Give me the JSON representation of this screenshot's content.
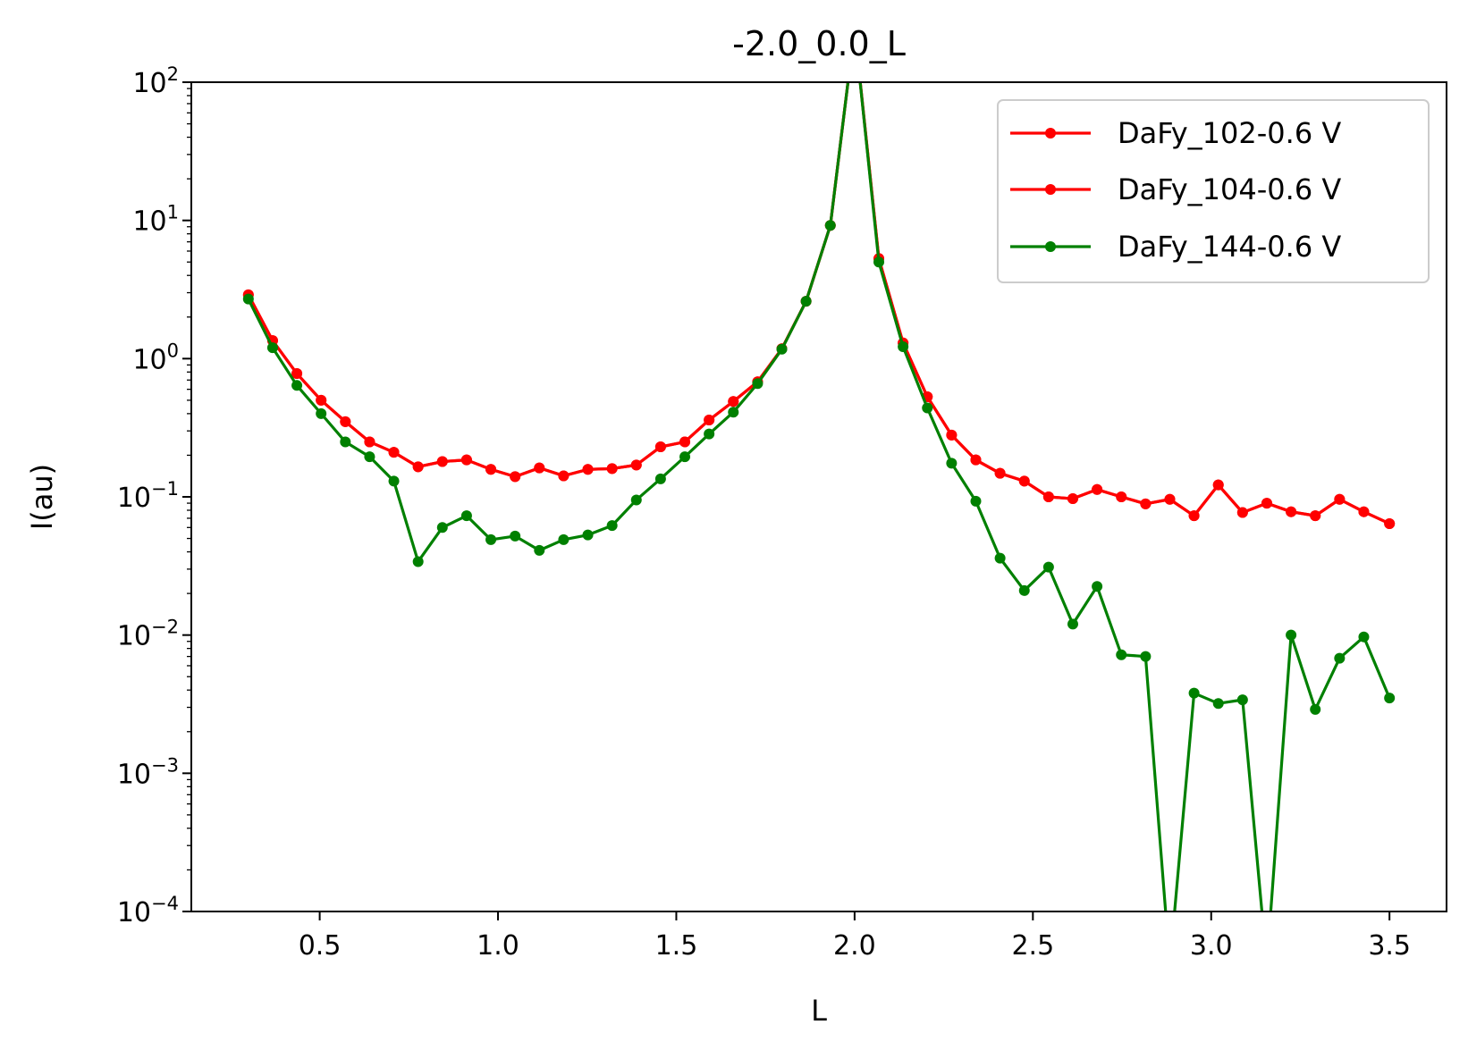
{
  "chart_data": {
    "type": "line",
    "title": "-2.0_0.0_L",
    "xlabel": "L",
    "ylabel": "I(au)",
    "xlim": [
      0.14,
      3.66
    ],
    "ylim": [
      0.0001,
      100
    ],
    "yscale": "log",
    "xticks": [
      {
        "value": 0.5,
        "label": "0.5"
      },
      {
        "value": 1.0,
        "label": "1.0"
      },
      {
        "value": 1.5,
        "label": "1.5"
      },
      {
        "value": 2.0,
        "label": "2.0"
      },
      {
        "value": 2.5,
        "label": "2.5"
      },
      {
        "value": 3.0,
        "label": "3.0"
      },
      {
        "value": 3.5,
        "label": "3.5"
      }
    ],
    "yticks": [
      {
        "exp": 2,
        "base": "10",
        "sup": "2"
      },
      {
        "exp": 1,
        "base": "10",
        "sup": "1"
      },
      {
        "exp": 0,
        "base": "10",
        "sup": "0"
      },
      {
        "exp": -1,
        "base": "10",
        "sup": "−1"
      },
      {
        "exp": -2,
        "base": "10",
        "sup": "−2"
      },
      {
        "exp": -3,
        "base": "10",
        "sup": "−3"
      },
      {
        "exp": -4,
        "base": "10",
        "sup": "−4"
      }
    ],
    "grid": false,
    "legend_position": "top-right",
    "series": [
      {
        "name": "DaFy_102-0.6 V",
        "color": "#ff0000",
        "x": [
          0.3,
          0.368,
          0.436,
          0.504,
          0.572,
          0.64,
          0.708,
          0.776,
          0.844,
          0.912,
          0.98,
          1.048,
          1.116,
          1.184,
          1.252,
          1.32,
          1.388,
          1.456,
          1.524,
          1.592,
          1.66,
          1.728,
          1.796,
          1.864,
          1.932,
          2.0,
          2.068,
          2.136,
          2.204,
          2.272,
          2.34,
          2.408,
          2.476,
          2.544,
          2.612,
          2.68,
          2.748,
          2.816,
          2.884,
          2.952,
          3.02,
          3.088,
          3.156,
          3.224,
          3.292,
          3.36,
          3.428,
          3.5
        ],
        "y": [
          2.9,
          1.35,
          0.78,
          0.5,
          0.35,
          0.25,
          0.21,
          0.165,
          0.18,
          0.185,
          0.158,
          0.14,
          0.162,
          0.142,
          0.158,
          0.16,
          0.17,
          0.23,
          0.25,
          0.36,
          0.49,
          0.68,
          1.18,
          2.6,
          9.2,
          1000,
          5.3,
          1.3,
          0.53,
          0.28,
          0.185,
          0.148,
          0.13,
          0.1,
          0.097,
          0.113,
          0.1,
          0.089,
          0.096,
          0.073,
          0.122,
          0.077,
          0.09,
          0.078,
          0.073,
          0.096,
          0.078,
          0.064
        ]
      },
      {
        "name": "DaFy_104-0.6 V",
        "color": "#ff0000",
        "x": [
          0.3,
          0.368,
          0.436,
          0.504,
          0.572,
          0.64,
          0.708,
          0.776,
          0.844,
          0.912,
          0.98,
          1.048,
          1.116,
          1.184,
          1.252,
          1.32,
          1.388,
          1.456,
          1.524,
          1.592,
          1.66,
          1.728,
          1.796,
          1.864,
          1.932,
          2.0,
          2.068,
          2.136,
          2.204,
          2.272,
          2.34,
          2.408,
          2.476,
          2.544,
          2.612,
          2.68,
          2.748,
          2.816,
          2.884,
          2.952,
          3.02,
          3.088,
          3.156,
          3.224,
          3.292,
          3.36,
          3.428,
          3.5
        ],
        "y": [
          2.9,
          1.35,
          0.78,
          0.5,
          0.35,
          0.25,
          0.21,
          0.165,
          0.18,
          0.185,
          0.158,
          0.14,
          0.162,
          0.142,
          0.158,
          0.16,
          0.17,
          0.23,
          0.25,
          0.36,
          0.49,
          0.68,
          1.18,
          2.6,
          9.2,
          1000,
          5.3,
          1.3,
          0.53,
          0.28,
          0.185,
          0.148,
          0.13,
          0.1,
          0.097,
          0.113,
          0.1,
          0.089,
          0.096,
          0.073,
          0.122,
          0.077,
          0.09,
          0.078,
          0.073,
          0.096,
          0.078,
          0.064
        ]
      },
      {
        "name": "DaFy_144-0.6 V",
        "color": "#008000",
        "x": [
          0.3,
          0.368,
          0.436,
          0.504,
          0.572,
          0.64,
          0.708,
          0.776,
          0.844,
          0.912,
          0.98,
          1.048,
          1.116,
          1.184,
          1.252,
          1.32,
          1.388,
          1.456,
          1.524,
          1.592,
          1.66,
          1.728,
          1.796,
          1.864,
          1.932,
          2.0,
          2.068,
          2.136,
          2.204,
          2.272,
          2.34,
          2.408,
          2.476,
          2.544,
          2.612,
          2.68,
          2.748,
          2.816,
          2.884,
          2.952,
          3.02,
          3.088,
          3.156,
          3.224,
          3.292,
          3.36,
          3.428,
          3.5
        ],
        "y": [
          2.7,
          1.2,
          0.64,
          0.4,
          0.25,
          0.195,
          0.13,
          0.034,
          0.06,
          0.073,
          0.049,
          0.052,
          0.041,
          0.049,
          0.053,
          0.062,
          0.095,
          0.135,
          0.195,
          0.285,
          0.41,
          0.66,
          1.17,
          2.6,
          9.2,
          1000,
          5.0,
          1.22,
          0.44,
          0.175,
          0.093,
          0.036,
          0.021,
          0.031,
          0.012,
          0.0225,
          0.0072,
          0.007,
          1e-06,
          0.0038,
          0.0032,
          0.0034,
          1e-06,
          0.01,
          0.0029,
          0.0068,
          0.0097,
          0.0035
        ]
      }
    ]
  }
}
